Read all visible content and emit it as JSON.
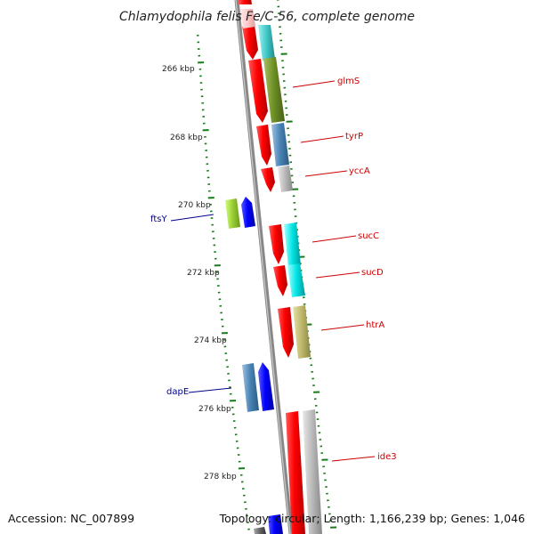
{
  "title": "Chlamydophila felis Fe/C-56, complete genome",
  "footer": {
    "accession": "Accession: NC_007899",
    "topology": "Topology: circular; Length: 1,166,239 bp; Genes: 1,046"
  },
  "scale_labels": [
    "266 kbp",
    "268 kbp",
    "270 kbp",
    "272 kbp",
    "274 kbp",
    "276 kbp",
    "278 kbp"
  ],
  "gene_labels": [
    {
      "name": "glmS",
      "strand": "forward"
    },
    {
      "name": "tyrP",
      "strand": "forward"
    },
    {
      "name": "yccA",
      "strand": "forward"
    },
    {
      "name": "ftsY",
      "strand": "reverse"
    },
    {
      "name": "sucC",
      "strand": "forward"
    },
    {
      "name": "sucD",
      "strand": "forward"
    },
    {
      "name": "htrA",
      "strand": "forward"
    },
    {
      "name": "dapE",
      "strand": "reverse"
    },
    {
      "name": "ide3",
      "strand": "forward"
    }
  ],
  "colors": {
    "cds_forward": "#ff0000",
    "cds_reverse": "#0000ff",
    "backbone": "#888888",
    "ticks": "#1a7a1a",
    "label_forward": "#cc0000",
    "label_reverse": "#00008b"
  }
}
